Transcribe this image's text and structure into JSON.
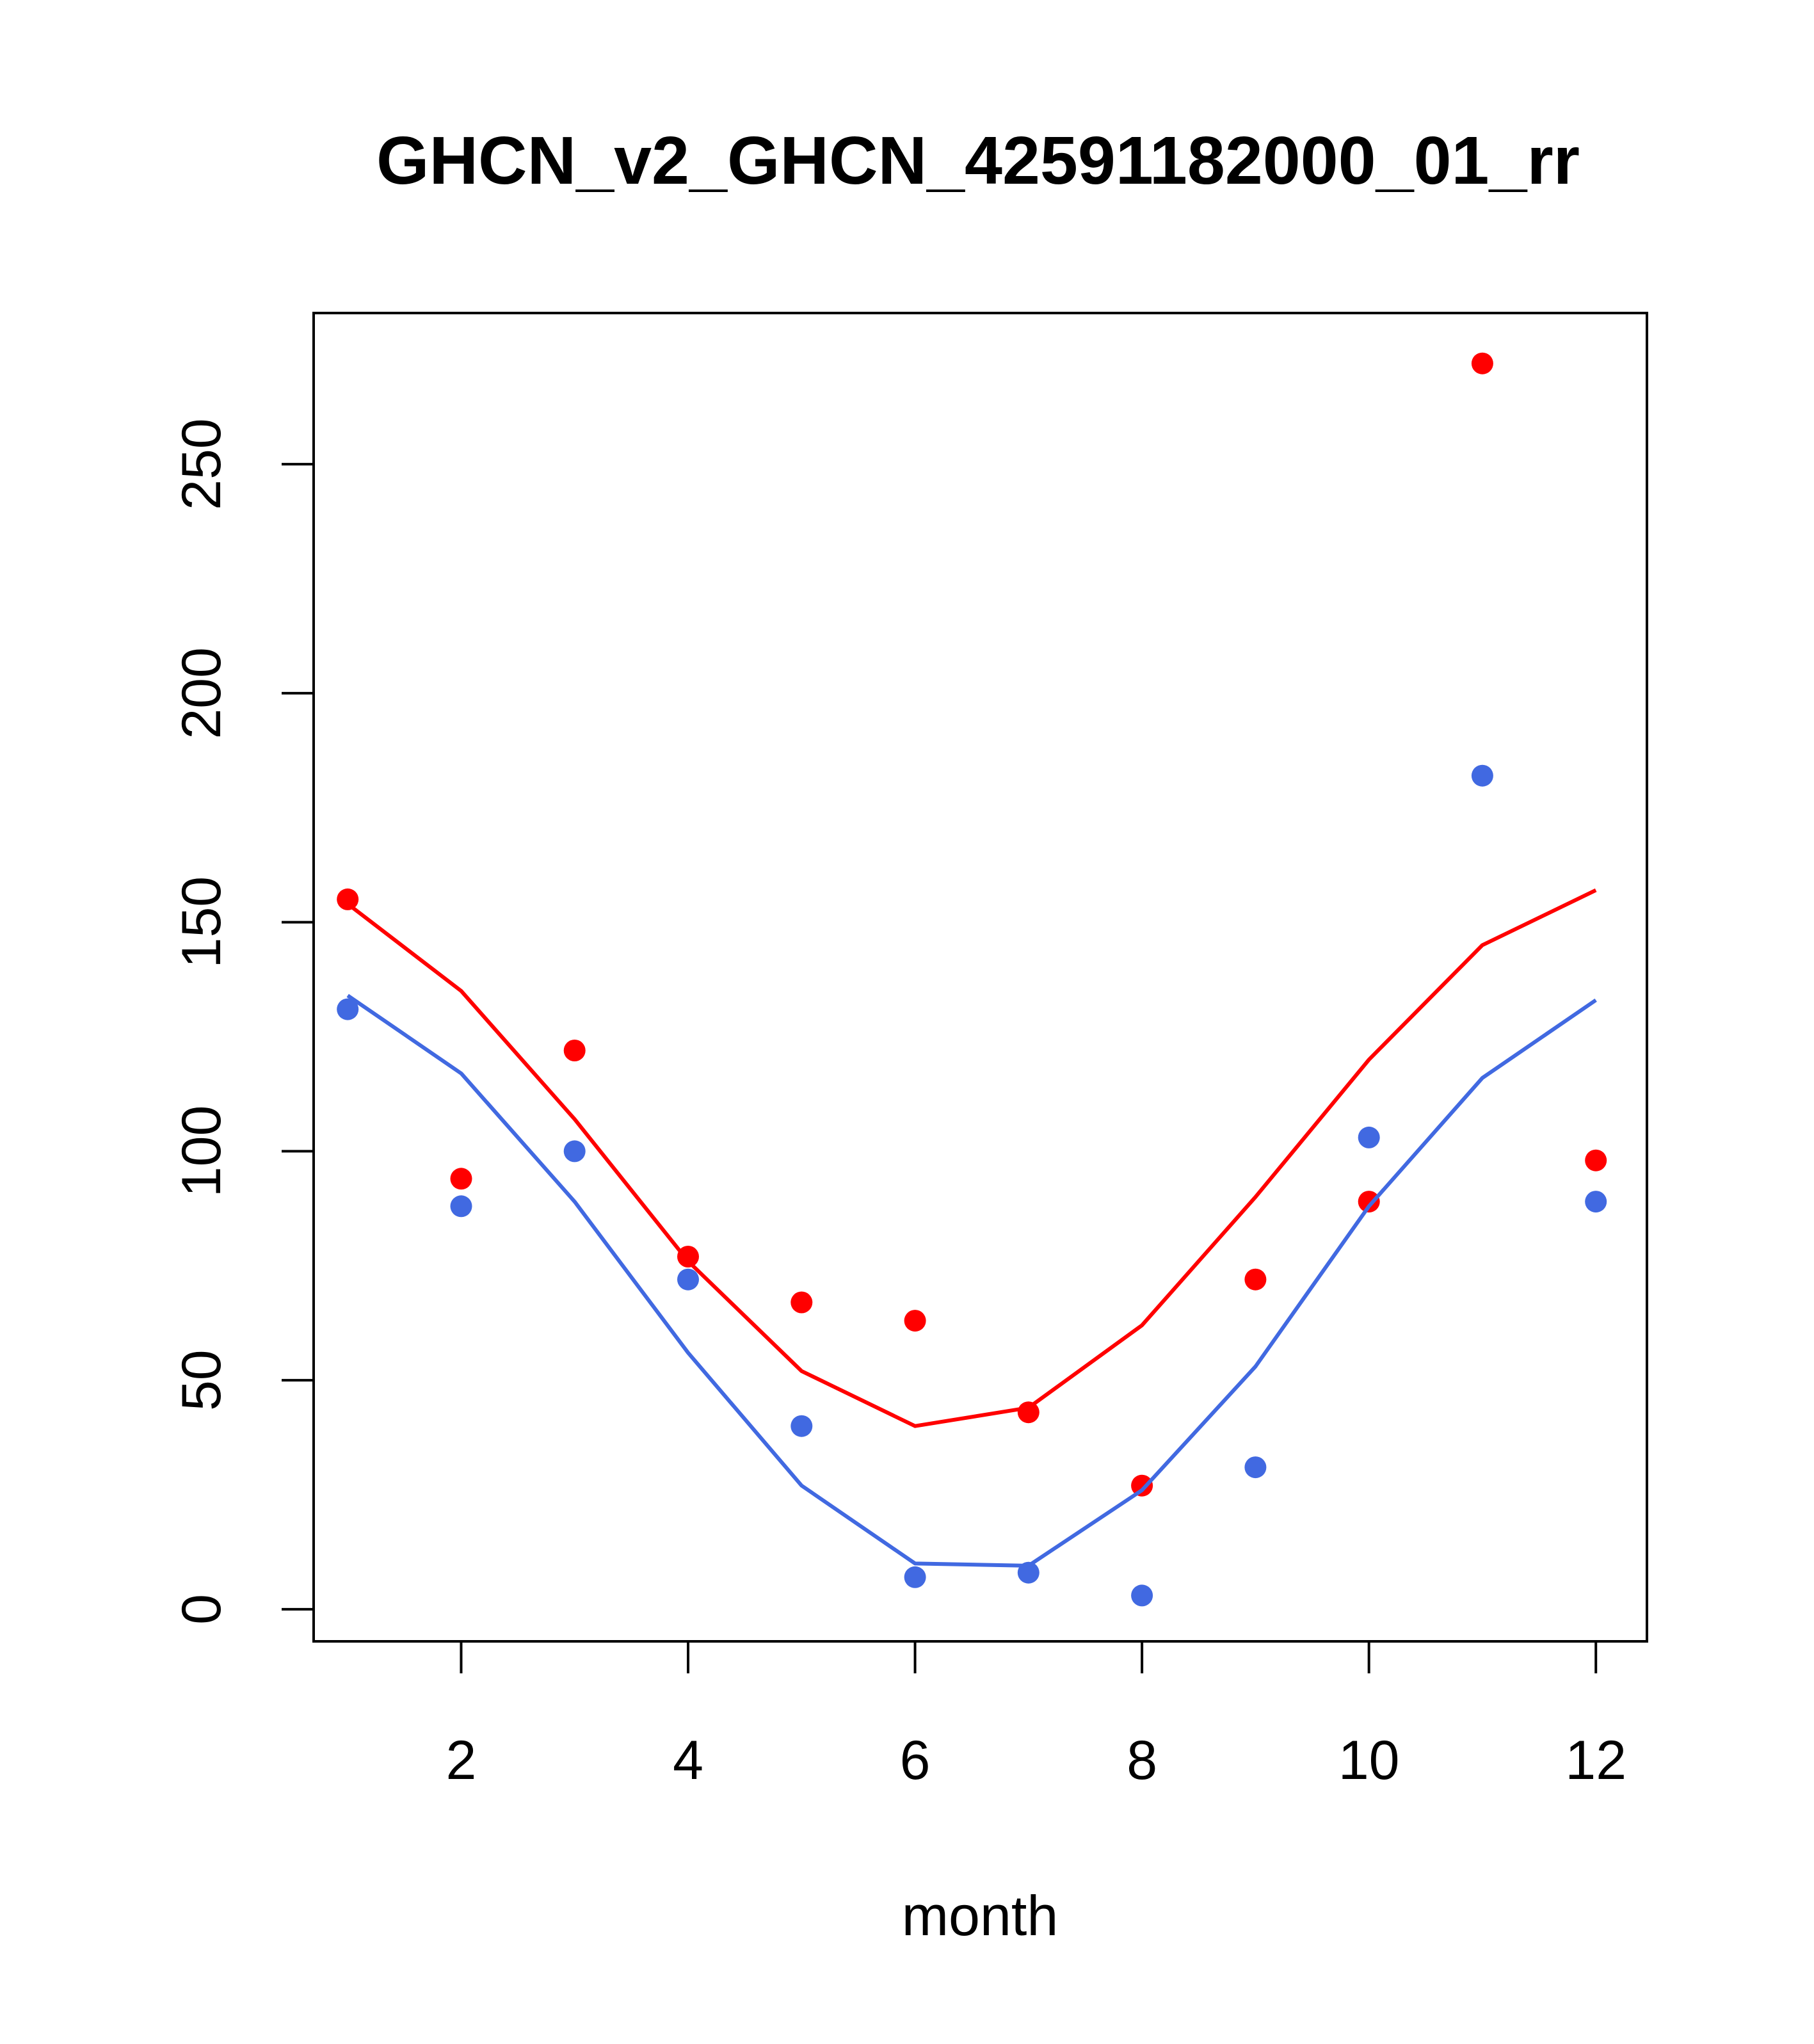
{
  "colors": {
    "series_red": "#ff0000",
    "series_blue": "#4169e1",
    "axis": "#000000",
    "background": "#ffffff"
  },
  "chart_data": {
    "type": "scatter",
    "title": "GHCN_v2_GHCN_42591182000_01_rr",
    "xlabel": "month",
    "ylabel": "",
    "xlim": [
      0.7,
      12.45
    ],
    "ylim": [
      -7,
      283
    ],
    "x_ticks": [
      2,
      4,
      6,
      8,
      10,
      12
    ],
    "y_ticks": [
      0,
      50,
      100,
      150,
      200,
      250
    ],
    "grid": false,
    "legend": "none",
    "series": [
      {
        "color": "#ff0000",
        "x": [
          1,
          2,
          3,
          4,
          5,
          6,
          7,
          8,
          9,
          10,
          11,
          12
        ],
        "points": [
          155,
          94,
          122,
          77,
          67,
          63,
          43,
          27,
          72,
          89,
          272,
          98
        ],
        "line": [
          154,
          135,
          107,
          76,
          52,
          40,
          44,
          62,
          90,
          120,
          145,
          157
        ]
      },
      {
        "color": "#4169e1",
        "x": [
          1,
          2,
          3,
          4,
          5,
          6,
          7,
          8,
          9,
          10,
          11,
          12
        ],
        "points": [
          131,
          88,
          100,
          72,
          40,
          7,
          8,
          3,
          31,
          103,
          182,
          89
        ],
        "line": [
          134,
          117,
          89,
          56,
          27,
          10,
          9.5,
          26,
          53,
          88,
          116,
          133
        ]
      }
    ]
  }
}
